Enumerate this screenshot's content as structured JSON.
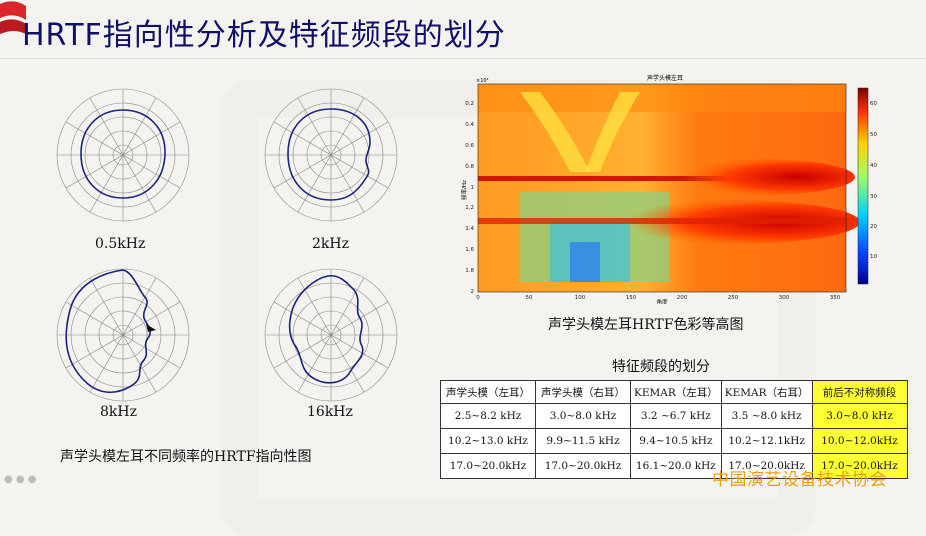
{
  "slide": {
    "title": "HRTF指向性分析及特征频段的划分",
    "left_caption": "声学头模左耳不同频率的HRTF指向性图",
    "heatmap_caption": "声学头模左耳HRTF色彩等高图",
    "table_title": "特征频段的划分",
    "watermark": "中国演艺设备技术协会"
  },
  "polar_plots": [
    {
      "label": "0.5kHz"
    },
    {
      "label": "2kHz"
    },
    {
      "label": "8kHz"
    },
    {
      "label": "16kHz"
    }
  ],
  "chart_data": {
    "type": "heatmap",
    "title": "声学头模左耳",
    "xlabel": "角度",
    "ylabel": "频率/Hz",
    "x_ticks": [
      "0",
      "50",
      "100",
      "150",
      "200",
      "250",
      "300",
      "350"
    ],
    "y_ticks": [
      "0.2",
      "0.4",
      "0.6",
      "0.8",
      "1",
      "1.2",
      "1.4",
      "1.6",
      "1.8",
      "2"
    ],
    "y_multiplier": "×10⁴",
    "xlim": [
      0,
      360
    ],
    "ylim": [
      0,
      20000
    ],
    "colorbar_ticks": [
      "10",
      "20",
      "30",
      "40",
      "50",
      "60"
    ],
    "colorbar_range": [
      0,
      65
    ]
  },
  "bands_table": {
    "headers": [
      "声学头模（左耳）",
      "声学头模（右耳）",
      "KEMAR（左耳）",
      "KEMAR（右耳）",
      "前后不对称频段"
    ],
    "rows": [
      [
        "2.5~8.2 kHz",
        "3.0~8.0 kHz",
        "3.2 ~6.7 kHz",
        "3.5 ~8.0 kHz",
        "3.0~8.0 kHz"
      ],
      [
        "10.2~13.0 kHz",
        "9.9~11.5 kHz",
        "9.4~10.5 kHz",
        "10.2~12.1kHz",
        "10.0~12.0kHz"
      ],
      [
        "17.0~20.0kHz",
        "17.0~20.0kHz",
        "16.1~20.0 kHz",
        "17.0~20.0kHz",
        "17.0~20.0kHz"
      ]
    ]
  }
}
